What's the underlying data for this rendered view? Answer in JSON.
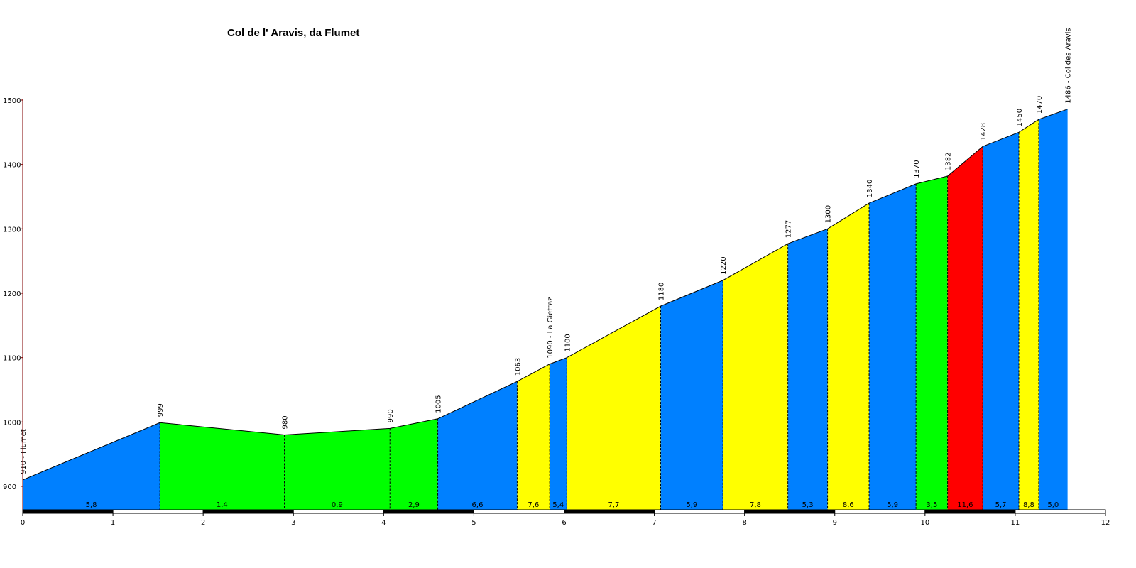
{
  "chart_data": {
    "type": "area",
    "title": "Col de l' Aravis, da Flumet",
    "xlabel": "",
    "ylabel": "",
    "xlim": [
      0,
      12
    ],
    "ylim": [
      865,
      1500
    ],
    "x_ticks": [
      "0",
      "1",
      "2",
      "3",
      "4",
      "5",
      "6",
      "7",
      "8",
      "9",
      "10",
      "11",
      "12"
    ],
    "y_ticks": [
      "900",
      "1000",
      "1100",
      "1200",
      "1300",
      "1400",
      "1500"
    ],
    "grid": false,
    "points": [
      {
        "x": 0.0,
        "elev": 910,
        "label": "910 - Flumet"
      },
      {
        "x": 1.52,
        "elev": 999,
        "label": "999"
      },
      {
        "x": 2.9,
        "elev": 980,
        "label": "980"
      },
      {
        "x": 4.07,
        "elev": 990,
        "label": "990"
      },
      {
        "x": 4.6,
        "elev": 1005,
        "label": "1005"
      },
      {
        "x": 5.48,
        "elev": 1063,
        "label": "1063"
      },
      {
        "x": 5.84,
        "elev": 1090,
        "label": "1090 - La Giettaz"
      },
      {
        "x": 6.03,
        "elev": 1100,
        "label": "1100"
      },
      {
        "x": 7.07,
        "elev": 1180,
        "label": "1180"
      },
      {
        "x": 7.76,
        "elev": 1220,
        "label": "1220"
      },
      {
        "x": 8.48,
        "elev": 1277,
        "label": "1277"
      },
      {
        "x": 8.92,
        "elev": 1300,
        "label": "1300"
      },
      {
        "x": 9.38,
        "elev": 1340,
        "label": "1340"
      },
      {
        "x": 9.9,
        "elev": 1370,
        "label": "1370"
      },
      {
        "x": 10.25,
        "elev": 1382,
        "label": "1382"
      },
      {
        "x": 10.64,
        "elev": 1428,
        "label": "1428"
      },
      {
        "x": 11.04,
        "elev": 1450,
        "label": "1450"
      },
      {
        "x": 11.26,
        "elev": 1470,
        "label": "1470"
      },
      {
        "x": 11.58,
        "elev": 1486,
        "label": "1486 - Col des Aravis"
      }
    ],
    "segments": [
      {
        "grade": "5,8",
        "color": "#0080ff"
      },
      {
        "grade": "1,4",
        "color": "#00ff00"
      },
      {
        "grade": "0,9",
        "color": "#00ff00"
      },
      {
        "grade": "2,9",
        "color": "#00ff00"
      },
      {
        "grade": "6,6",
        "color": "#0080ff"
      },
      {
        "grade": "7,6",
        "color": "#ffff00"
      },
      {
        "grade": "5,4",
        "color": "#0080ff"
      },
      {
        "grade": "7,7",
        "color": "#ffff00"
      },
      {
        "grade": "5,9",
        "color": "#0080ff"
      },
      {
        "grade": "7,8",
        "color": "#ffff00"
      },
      {
        "grade": "5,3",
        "color": "#0080ff"
      },
      {
        "grade": "8,6",
        "color": "#ffff00"
      },
      {
        "grade": "5,9",
        "color": "#0080ff"
      },
      {
        "grade": "3,5",
        "color": "#00ff00"
      },
      {
        "grade": "11,6",
        "color": "#ff0000"
      },
      {
        "grade": "5,7",
        "color": "#0080ff"
      },
      {
        "grade": "8,8",
        "color": "#ffff00"
      },
      {
        "grade": "5,0",
        "color": "#0080ff"
      }
    ]
  }
}
